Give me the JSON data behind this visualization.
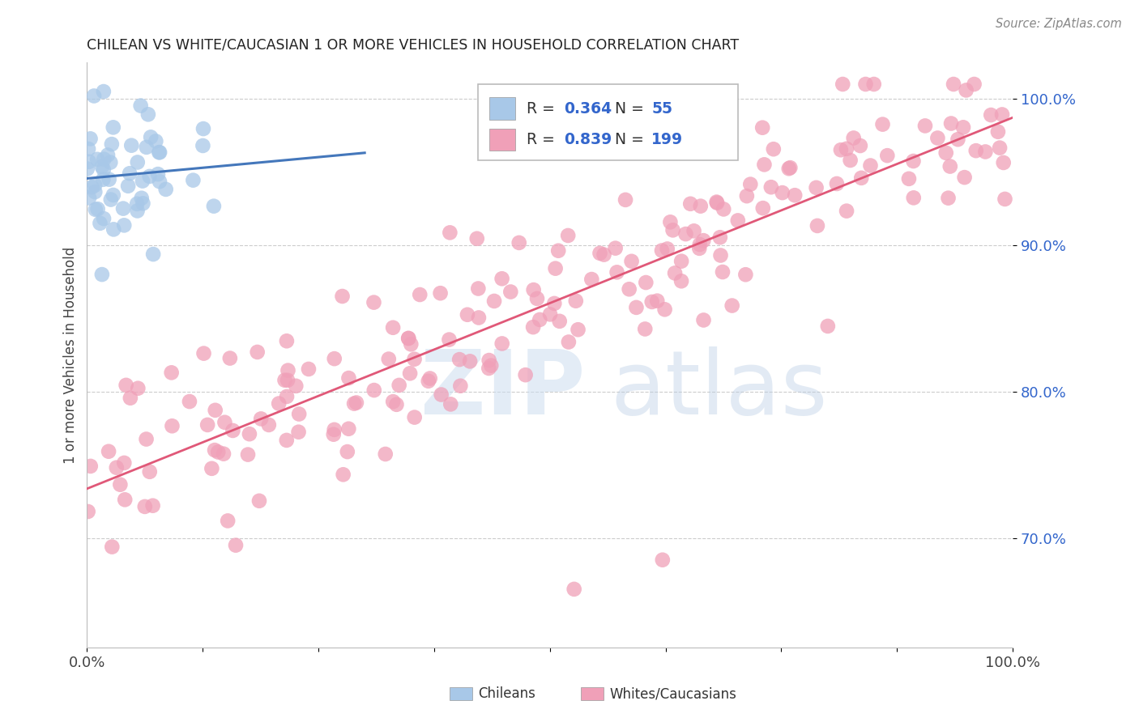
{
  "title": "CHILEAN VS WHITE/CAUCASIAN 1 OR MORE VEHICLES IN HOUSEHOLD CORRELATION CHART",
  "source": "Source: ZipAtlas.com",
  "ylabel": "1 or more Vehicles in Household",
  "ytick_labels": [
    "70.0%",
    "80.0%",
    "90.0%",
    "100.0%"
  ],
  "ytick_values": [
    0.7,
    0.8,
    0.9,
    1.0
  ],
  "xlim": [
    0.0,
    1.0
  ],
  "ylim": [
    0.625,
    1.025
  ],
  "legend_blue_r": "0.364",
  "legend_blue_n": "55",
  "legend_pink_r": "0.839",
  "legend_pink_n": "199",
  "blue_color": "#a8c8e8",
  "blue_line_color": "#4477bb",
  "pink_color": "#f0a0b8",
  "pink_line_color": "#e05878",
  "background_color": "#ffffff",
  "grid_color": "#cccccc",
  "title_color": "#222222",
  "axis_label_color": "#444444",
  "ytick_color": "#3366cc",
  "source_color": "#888888",
  "legend_text_color": "#333333",
  "legend_value_color": "#3366cc"
}
